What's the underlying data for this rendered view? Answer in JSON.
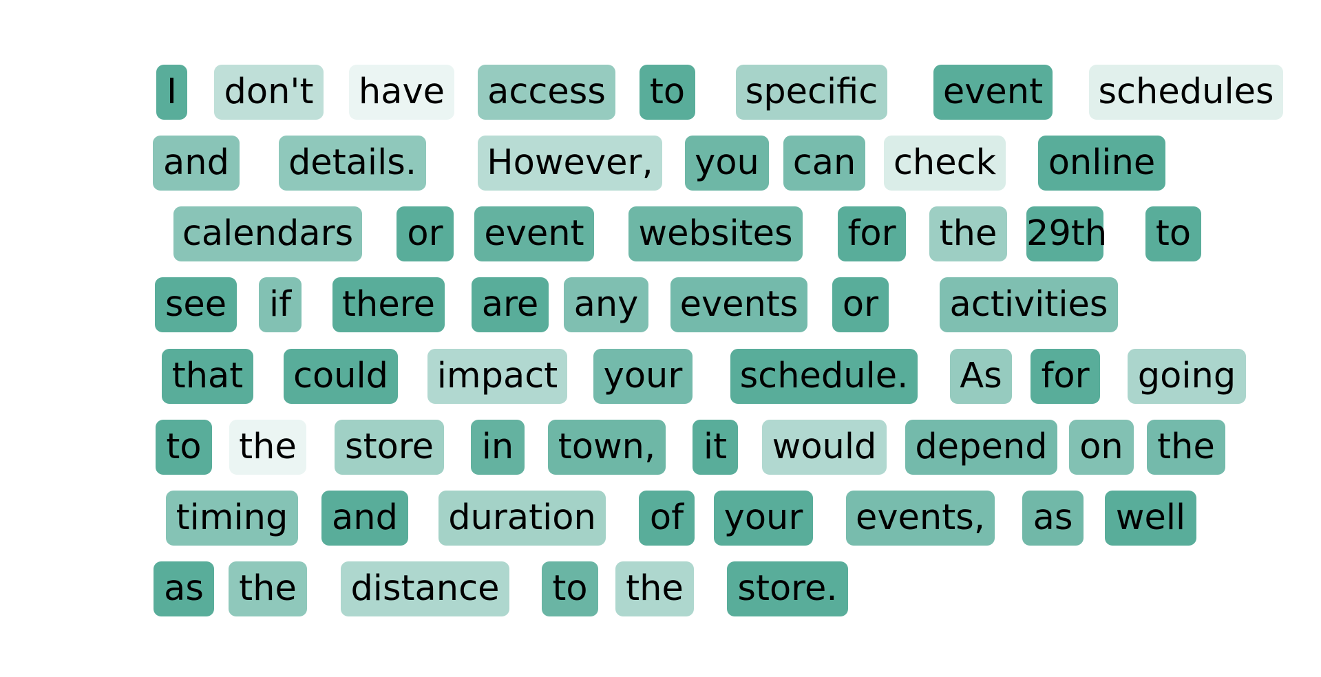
{
  "highlight_color": "#56AB98",
  "tokens": [
    {
      "text": "I",
      "weight": 0.98
    },
    {
      "text": "don't",
      "weight": 0.38
    },
    {
      "text": "have",
      "weight": 0.12
    },
    {
      "text": "access",
      "weight": 0.62
    },
    {
      "text": "to",
      "weight": 0.98
    },
    {
      "text": "specific",
      "weight": 0.52
    },
    {
      "text": "event",
      "weight": 0.98
    },
    {
      "text": "schedules",
      "weight": 0.18
    },
    {
      "text": "and",
      "weight": 0.7
    },
    {
      "text": "details.",
      "weight": 0.66
    },
    {
      "text": "However,",
      "weight": 0.42
    },
    {
      "text": "you",
      "weight": 0.86
    },
    {
      "text": "can",
      "weight": 0.8
    },
    {
      "text": "check",
      "weight": 0.22
    },
    {
      "text": "online",
      "weight": 0.98
    },
    {
      "text": "calendars",
      "weight": 0.7
    },
    {
      "text": "or",
      "weight": 0.98
    },
    {
      "text": "event",
      "weight": 0.92
    },
    {
      "text": "websites",
      "weight": 0.86
    },
    {
      "text": "for",
      "weight": 0.98
    },
    {
      "text": "the",
      "weight": 0.58
    },
    {
      "text": "29th",
      "weight": 0.98
    },
    {
      "text": "to",
      "weight": 0.98
    },
    {
      "text": "see",
      "weight": 0.98
    },
    {
      "text": "if",
      "weight": 0.74
    },
    {
      "text": "there",
      "weight": 0.98
    },
    {
      "text": "are",
      "weight": 0.98
    },
    {
      "text": "any",
      "weight": 0.76
    },
    {
      "text": "events",
      "weight": 0.82
    },
    {
      "text": "or",
      "weight": 0.98
    },
    {
      "text": "activities",
      "weight": 0.76
    },
    {
      "text": "that",
      "weight": 0.98
    },
    {
      "text": "could",
      "weight": 0.98
    },
    {
      "text": "impact",
      "weight": 0.46
    },
    {
      "text": "your",
      "weight": 0.82
    },
    {
      "text": "schedule.",
      "weight": 0.98
    },
    {
      "text": "As",
      "weight": 0.62
    },
    {
      "text": "for",
      "weight": 0.98
    },
    {
      "text": "going",
      "weight": 0.5
    },
    {
      "text": "to",
      "weight": 0.98
    },
    {
      "text": "the",
      "weight": 0.12
    },
    {
      "text": "store",
      "weight": 0.56
    },
    {
      "text": "in",
      "weight": 0.92
    },
    {
      "text": "town,",
      "weight": 0.86
    },
    {
      "text": "it",
      "weight": 0.98
    },
    {
      "text": "would",
      "weight": 0.46
    },
    {
      "text": "depend",
      "weight": 0.82
    },
    {
      "text": "on",
      "weight": 0.74
    },
    {
      "text": "the",
      "weight": 0.82
    },
    {
      "text": "timing",
      "weight": 0.72
    },
    {
      "text": "and",
      "weight": 0.98
    },
    {
      "text": "duration",
      "weight": 0.54
    },
    {
      "text": "of",
      "weight": 0.98
    },
    {
      "text": "your",
      "weight": 0.98
    },
    {
      "text": "events,",
      "weight": 0.8
    },
    {
      "text": "as",
      "weight": 0.84
    },
    {
      "text": "well",
      "weight": 0.98
    },
    {
      "text": "as",
      "weight": 0.98
    },
    {
      "text": "the",
      "weight": 0.66
    },
    {
      "text": "distance",
      "weight": 0.48
    },
    {
      "text": "to",
      "weight": 0.88
    },
    {
      "text": "the",
      "weight": 0.48
    },
    {
      "text": "store.",
      "weight": 0.98
    }
  ]
}
